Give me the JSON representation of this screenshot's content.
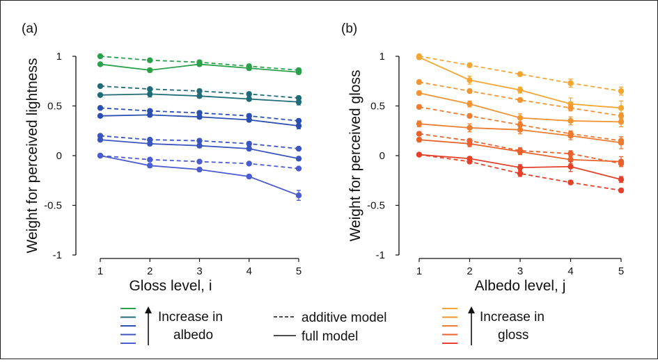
{
  "chart_data": [
    {
      "type": "line",
      "panel_label": "(a)",
      "xlabel": "Gloss level, i",
      "ylabel": "Weight for perceived lightness",
      "x": [
        1,
        2,
        3,
        4,
        5
      ],
      "xlim": [
        0.5,
        5.5
      ],
      "ylim": [
        -1,
        1
      ],
      "yticks": [
        1,
        0.5,
        0,
        -0.5,
        -1
      ],
      "ytick_labels": [
        "1",
        "0.5",
        "0",
        "-0.5",
        "-1"
      ],
      "grid": false,
      "series": [
        {
          "model": "additive",
          "color": "#2aa04a",
          "values": [
            1.0,
            0.96,
            0.94,
            0.9,
            0.86
          ],
          "err": [
            0.01,
            0.01,
            0.02,
            0.02,
            0.02
          ]
        },
        {
          "model": "full",
          "color": "#2aa04a",
          "values": [
            0.92,
            0.86,
            0.92,
            0.88,
            0.84
          ],
          "err": [
            0.01,
            0.02,
            0.02,
            0.02,
            0.02
          ]
        },
        {
          "model": "additive",
          "color": "#1f6b78",
          "values": [
            0.7,
            0.67,
            0.65,
            0.62,
            0.58
          ],
          "err": [
            0.01,
            0.01,
            0.02,
            0.02,
            0.02
          ]
        },
        {
          "model": "full",
          "color": "#1f6b78",
          "values": [
            0.61,
            0.62,
            0.6,
            0.57,
            0.54
          ],
          "err": [
            0.01,
            0.03,
            0.02,
            0.02,
            0.03
          ]
        },
        {
          "model": "additive",
          "color": "#2a4fb0",
          "values": [
            0.48,
            0.45,
            0.43,
            0.4,
            0.35
          ],
          "err": [
            0.01,
            0.01,
            0.02,
            0.02,
            0.02
          ]
        },
        {
          "model": "full",
          "color": "#2a4fb0",
          "values": [
            0.4,
            0.41,
            0.39,
            0.36,
            0.3
          ],
          "err": [
            0.01,
            0.02,
            0.02,
            0.02,
            0.03
          ]
        },
        {
          "model": "additive",
          "color": "#3a55c0",
          "values": [
            0.2,
            0.16,
            0.15,
            0.12,
            0.07
          ],
          "err": [
            0.01,
            0.01,
            0.02,
            0.02,
            0.01
          ]
        },
        {
          "model": "full",
          "color": "#3a55c0",
          "values": [
            0.16,
            0.12,
            0.1,
            0.07,
            -0.03
          ],
          "err": [
            0.01,
            0.02,
            0.02,
            0.02,
            0.02
          ]
        },
        {
          "model": "additive",
          "color": "#4a5cd0",
          "values": [
            0.0,
            -0.04,
            -0.06,
            -0.08,
            -0.13
          ],
          "err": [
            0.01,
            0.01,
            0.01,
            0.01,
            0.01
          ]
        },
        {
          "model": "full",
          "color": "#4a5cd0",
          "values": [
            0.0,
            -0.1,
            -0.14,
            -0.21,
            -0.4
          ],
          "err": [
            0.01,
            0.02,
            0.02,
            0.02,
            0.05
          ]
        }
      ]
    },
    {
      "type": "line",
      "panel_label": "(b)",
      "xlabel": "Albedo level, j",
      "ylabel": "Weight for perceived gloss",
      "x": [
        1,
        2,
        3,
        4,
        5
      ],
      "xlim": [
        0.5,
        5.5
      ],
      "ylim": [
        -1,
        1
      ],
      "yticks": [
        1,
        0.5,
        0,
        -0.5,
        -1
      ],
      "ytick_labels": [
        "1",
        "0.5",
        "0",
        "-0.5",
        "-1"
      ],
      "grid": false,
      "series": [
        {
          "model": "additive",
          "color": "#f4a632",
          "values": [
            1.0,
            0.91,
            0.82,
            0.73,
            0.65
          ],
          "err": [
            0.02,
            0.02,
            0.02,
            0.04,
            0.04
          ]
        },
        {
          "model": "full",
          "color": "#f4a632",
          "values": [
            0.99,
            0.76,
            0.66,
            0.52,
            0.48
          ],
          "err": [
            0.02,
            0.04,
            0.03,
            0.06,
            0.07
          ]
        },
        {
          "model": "additive",
          "color": "#f29432",
          "values": [
            0.74,
            0.65,
            0.56,
            0.48,
            0.4
          ],
          "err": [
            0.02,
            0.02,
            0.02,
            0.03,
            0.03
          ]
        },
        {
          "model": "full",
          "color": "#f29432",
          "values": [
            0.63,
            0.52,
            0.38,
            0.35,
            0.34
          ],
          "err": [
            0.02,
            0.03,
            0.04,
            0.04,
            0.05
          ]
        },
        {
          "model": "additive",
          "color": "#ee7c30",
          "values": [
            0.49,
            0.4,
            0.31,
            0.22,
            0.15
          ],
          "err": [
            0.02,
            0.02,
            0.03,
            0.03,
            0.04
          ]
        },
        {
          "model": "full",
          "color": "#ee7c30",
          "values": [
            0.32,
            0.28,
            0.26,
            0.2,
            0.13
          ],
          "err": [
            0.03,
            0.04,
            0.04,
            0.04,
            0.06
          ]
        },
        {
          "model": "additive",
          "color": "#ea612c",
          "values": [
            0.22,
            0.15,
            0.05,
            0.02,
            -0.08
          ],
          "err": [
            0.02,
            0.02,
            0.03,
            0.03,
            0.03
          ]
        },
        {
          "model": "full",
          "color": "#ea612c",
          "values": [
            0.16,
            0.12,
            0.04,
            -0.04,
            -0.06
          ],
          "err": [
            0.02,
            0.03,
            0.03,
            0.04,
            0.05
          ]
        },
        {
          "model": "additive",
          "color": "#e5402a",
          "values": [
            0.01,
            -0.06,
            -0.18,
            -0.27,
            -0.35
          ],
          "err": [
            0.01,
            0.02,
            0.03,
            0.02,
            0.02
          ]
        },
        {
          "model": "full",
          "color": "#e5402a",
          "values": [
            0.01,
            -0.03,
            -0.12,
            -0.11,
            -0.24
          ],
          "err": [
            0.01,
            0.02,
            0.03,
            0.05,
            0.03
          ]
        }
      ]
    }
  ],
  "legend": {
    "albedo": {
      "line1": "Increase in",
      "line2": "albedo",
      "colors": [
        "#2aa04a",
        "#1f6b78",
        "#2a4fb0",
        "#3a55c0",
        "#4a5cd0"
      ]
    },
    "models": {
      "additive": "additive model",
      "full": "full model"
    },
    "gloss": {
      "line1": "Increase in",
      "line2": "gloss",
      "colors": [
        "#f4a632",
        "#f29432",
        "#ee7c30",
        "#ea612c",
        "#e5402a"
      ]
    }
  }
}
